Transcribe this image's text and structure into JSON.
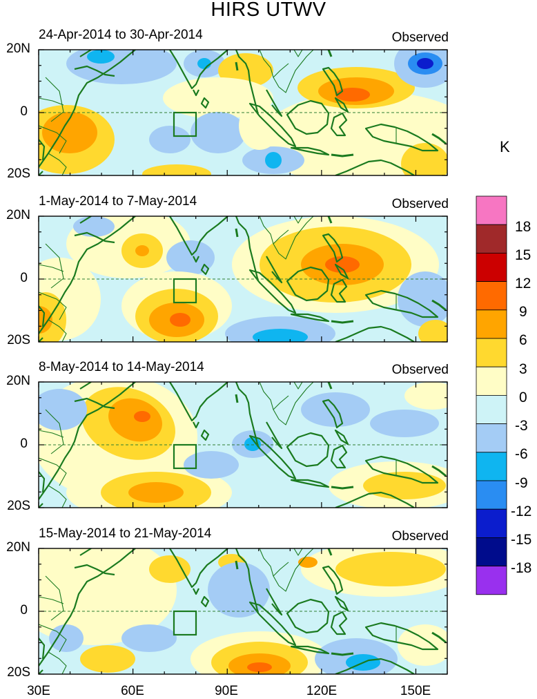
{
  "title": "HIRS UTWV",
  "panels": [
    {
      "date": "24-Apr-2014 to 30-Apr-2014",
      "label": "Observed"
    },
    {
      "date": "1-May-2014 to 7-May-2014",
      "label": "Observed"
    },
    {
      "date": "8-May-2014 to 14-May-2014",
      "label": "Observed"
    },
    {
      "date": "15-May-2014 to 21-May-2014",
      "label": "Observed"
    }
  ],
  "lat_labels": [
    "20N",
    "0",
    "20S"
  ],
  "lon_labels": [
    "30E",
    "60E",
    "90E",
    "120E",
    "150E"
  ],
  "unit": "K",
  "colorbar": {
    "labels": [
      "18",
      "15",
      "12",
      "9",
      "6",
      "3",
      "0",
      "-3",
      "-6",
      "-9",
      "-12",
      "-15",
      "-18"
    ],
    "colors": [
      "#f776c2",
      "#a0292a",
      "#cc0000",
      "#ff6a00",
      "#ffa500",
      "#ffd92f",
      "#fffdc6",
      "#cef3f7",
      "#a4ccf5",
      "#0fb5f0",
      "#2a8df2",
      "#0b1dcd",
      "#000c8c",
      "#9930ee"
    ]
  },
  "map_colors": {
    "coast": "#1a7a1f",
    "warm1": "#fffdc6",
    "warm2": "#ffd92f",
    "warm3": "#ffa500",
    "warm4": "#ff6a00",
    "cool1": "#cef3f7",
    "cool2": "#a4ccf5",
    "cool3": "#0fb5f0",
    "cool4": "#2a8df2",
    "cool5": "#0b1dcd"
  }
}
